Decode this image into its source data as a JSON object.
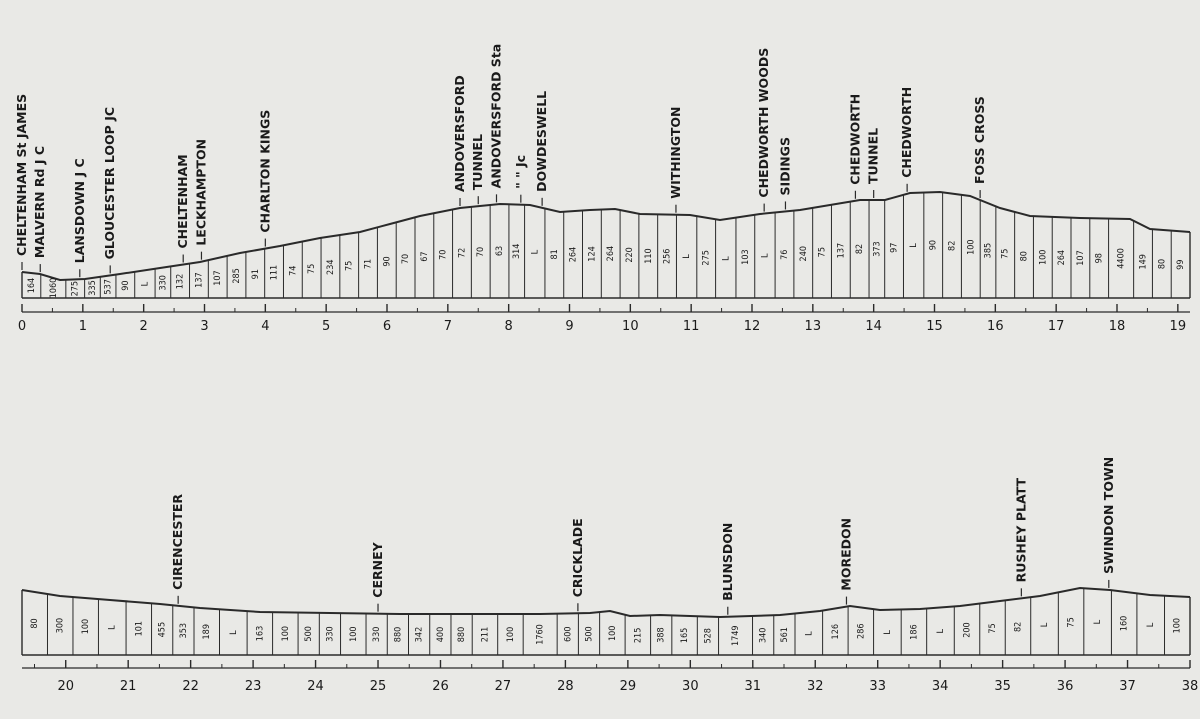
{
  "top_profile": {
    "mile_labels": [
      "0",
      "1",
      "2",
      "3",
      "4",
      "5",
      "6",
      "7",
      "8",
      "9",
      "10",
      "11",
      "12",
      "13",
      "14",
      "15",
      "16",
      "17",
      "18",
      "19"
    ],
    "stations": [
      {
        "label": "CHELTENHAM St JAMES",
        "mile": 0.0
      },
      {
        "label": "MALVERN Rd J C",
        "mile": 0.3
      },
      {
        "label": "LANSDOWN J C",
        "mile": 0.95
      },
      {
        "label": "GLOUCESTER LOOP JC",
        "mile": 1.45
      },
      {
        "label": "CHELTENHAM",
        "mile": 2.65
      },
      {
        "label": "LECKHAMPTON",
        "mile": 2.95
      },
      {
        "label": "CHARLTON KINGS",
        "mile": 4.0
      },
      {
        "label": "ANDOVERSFORD",
        "mile": 7.2
      },
      {
        "label": "TUNNEL",
        "mile": 7.5
      },
      {
        "label": "ANDOVERSFORD Sta",
        "mile": 7.8
      },
      {
        "label": "\"     \"      Jc",
        "mile": 8.2
      },
      {
        "label": "DOWDESWELL",
        "mile": 8.55
      },
      {
        "label": "WITHINGTON",
        "mile": 10.75
      },
      {
        "label": "CHEDWORTH WOODS",
        "mile": 12.2
      },
      {
        "label": "SIDINGS",
        "mile": 12.55
      },
      {
        "label": "CHEDWORTH",
        "mile": 13.7
      },
      {
        "label": "TUNNEL",
        "mile": 14.0
      },
      {
        "label": "CHEDWORTH",
        "mile": 14.55
      },
      {
        "label": "FOSS CROSS",
        "mile": 15.75
      }
    ],
    "gradients": [
      "164",
      "1060",
      "275",
      "335",
      "537",
      "90",
      "L",
      "330",
      "132",
      "137",
      "107",
      "285",
      "91",
      "111",
      "74",
      "75",
      "234",
      "75",
      "71",
      "90",
      "70",
      "67",
      "70",
      "72",
      "70",
      "63",
      "314",
      "L",
      "81",
      "264",
      "124",
      "264",
      "220",
      "110",
      "256",
      "L",
      "275",
      "L",
      "103",
      "L",
      "76",
      "240",
      "75",
      "137",
      "82",
      "373",
      "97",
      "L",
      "90",
      "82",
      "100",
      "385",
      "75",
      "80",
      "100",
      "264",
      "107",
      "98",
      "4400",
      "149",
      "80",
      "99"
    ]
  },
  "bottom_profile": {
    "mile_labels": [
      "20",
      "21",
      "22",
      "23",
      "24",
      "25",
      "26",
      "27",
      "28",
      "29",
      "30",
      "31",
      "32",
      "33",
      "34",
      "35",
      "36",
      "37",
      "38"
    ],
    "stations": [
      {
        "label": "CIRENCESTER",
        "mile": 21.8
      },
      {
        "label": "CERNEY",
        "mile": 25.0
      },
      {
        "label": "CRICKLADE",
        "mile": 28.2
      },
      {
        "label": "BLUNSDON",
        "mile": 30.6
      },
      {
        "label": "MOREDON",
        "mile": 32.5
      },
      {
        "label": "RUSHEY PLATT",
        "mile": 35.3
      },
      {
        "label": "SWINDON TOWN",
        "mile": 36.7
      }
    ],
    "gradients": [
      "80",
      "300",
      "100",
      "L",
      "101",
      "455",
      "353",
      "189",
      "L",
      "163",
      "100",
      "500",
      "330",
      "100",
      "330",
      "880",
      "342",
      "400",
      "880",
      "211",
      "100",
      "1760",
      "600",
      "500",
      "100",
      "215",
      "388",
      "165",
      "528",
      "1749",
      "340",
      "561",
      "L",
      "126",
      "286",
      "L",
      "186",
      "L",
      "200",
      "75",
      "82",
      "L",
      "75",
      "L",
      "160",
      "L",
      "100"
    ]
  }
}
